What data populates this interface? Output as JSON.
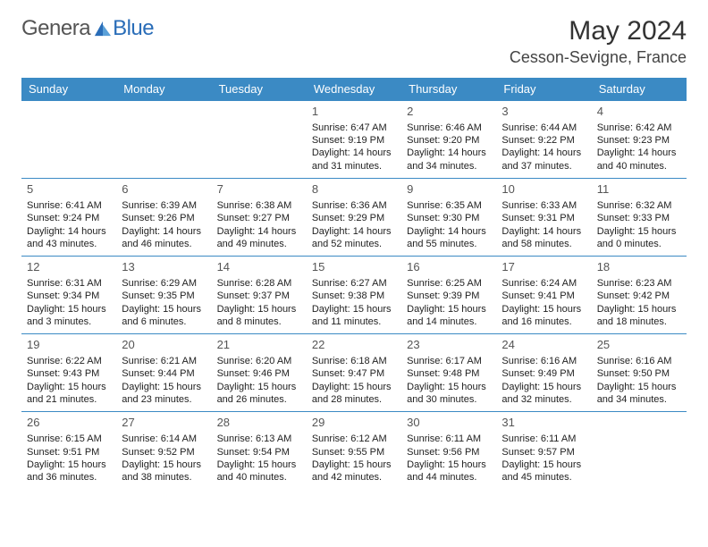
{
  "logo": {
    "part1": "Genera",
    "part2": "Blue"
  },
  "title": "May 2024",
  "location": "Cesson-Sevigne, France",
  "colors": {
    "headerBg": "#3b8ac4",
    "headerText": "#ffffff",
    "cellBorder": "#3b8ac4",
    "bodyText": "#222222",
    "logoBlue": "#2a6db8",
    "logoGray": "#555555"
  },
  "dayHeaders": [
    "Sunday",
    "Monday",
    "Tuesday",
    "Wednesday",
    "Thursday",
    "Friday",
    "Saturday"
  ],
  "weeks": [
    [
      null,
      null,
      null,
      {
        "n": "1",
        "sr": "6:47 AM",
        "ss": "9:19 PM",
        "dl": "14 hours and 31 minutes."
      },
      {
        "n": "2",
        "sr": "6:46 AM",
        "ss": "9:20 PM",
        "dl": "14 hours and 34 minutes."
      },
      {
        "n": "3",
        "sr": "6:44 AM",
        "ss": "9:22 PM",
        "dl": "14 hours and 37 minutes."
      },
      {
        "n": "4",
        "sr": "6:42 AM",
        "ss": "9:23 PM",
        "dl": "14 hours and 40 minutes."
      }
    ],
    [
      {
        "n": "5",
        "sr": "6:41 AM",
        "ss": "9:24 PM",
        "dl": "14 hours and 43 minutes."
      },
      {
        "n": "6",
        "sr": "6:39 AM",
        "ss": "9:26 PM",
        "dl": "14 hours and 46 minutes."
      },
      {
        "n": "7",
        "sr": "6:38 AM",
        "ss": "9:27 PM",
        "dl": "14 hours and 49 minutes."
      },
      {
        "n": "8",
        "sr": "6:36 AM",
        "ss": "9:29 PM",
        "dl": "14 hours and 52 minutes."
      },
      {
        "n": "9",
        "sr": "6:35 AM",
        "ss": "9:30 PM",
        "dl": "14 hours and 55 minutes."
      },
      {
        "n": "10",
        "sr": "6:33 AM",
        "ss": "9:31 PM",
        "dl": "14 hours and 58 minutes."
      },
      {
        "n": "11",
        "sr": "6:32 AM",
        "ss": "9:33 PM",
        "dl": "15 hours and 0 minutes."
      }
    ],
    [
      {
        "n": "12",
        "sr": "6:31 AM",
        "ss": "9:34 PM",
        "dl": "15 hours and 3 minutes."
      },
      {
        "n": "13",
        "sr": "6:29 AM",
        "ss": "9:35 PM",
        "dl": "15 hours and 6 minutes."
      },
      {
        "n": "14",
        "sr": "6:28 AM",
        "ss": "9:37 PM",
        "dl": "15 hours and 8 minutes."
      },
      {
        "n": "15",
        "sr": "6:27 AM",
        "ss": "9:38 PM",
        "dl": "15 hours and 11 minutes."
      },
      {
        "n": "16",
        "sr": "6:25 AM",
        "ss": "9:39 PM",
        "dl": "15 hours and 14 minutes."
      },
      {
        "n": "17",
        "sr": "6:24 AM",
        "ss": "9:41 PM",
        "dl": "15 hours and 16 minutes."
      },
      {
        "n": "18",
        "sr": "6:23 AM",
        "ss": "9:42 PM",
        "dl": "15 hours and 18 minutes."
      }
    ],
    [
      {
        "n": "19",
        "sr": "6:22 AM",
        "ss": "9:43 PM",
        "dl": "15 hours and 21 minutes."
      },
      {
        "n": "20",
        "sr": "6:21 AM",
        "ss": "9:44 PM",
        "dl": "15 hours and 23 minutes."
      },
      {
        "n": "21",
        "sr": "6:20 AM",
        "ss": "9:46 PM",
        "dl": "15 hours and 26 minutes."
      },
      {
        "n": "22",
        "sr": "6:18 AM",
        "ss": "9:47 PM",
        "dl": "15 hours and 28 minutes."
      },
      {
        "n": "23",
        "sr": "6:17 AM",
        "ss": "9:48 PM",
        "dl": "15 hours and 30 minutes."
      },
      {
        "n": "24",
        "sr": "6:16 AM",
        "ss": "9:49 PM",
        "dl": "15 hours and 32 minutes."
      },
      {
        "n": "25",
        "sr": "6:16 AM",
        "ss": "9:50 PM",
        "dl": "15 hours and 34 minutes."
      }
    ],
    [
      {
        "n": "26",
        "sr": "6:15 AM",
        "ss": "9:51 PM",
        "dl": "15 hours and 36 minutes."
      },
      {
        "n": "27",
        "sr": "6:14 AM",
        "ss": "9:52 PM",
        "dl": "15 hours and 38 minutes."
      },
      {
        "n": "28",
        "sr": "6:13 AM",
        "ss": "9:54 PM",
        "dl": "15 hours and 40 minutes."
      },
      {
        "n": "29",
        "sr": "6:12 AM",
        "ss": "9:55 PM",
        "dl": "15 hours and 42 minutes."
      },
      {
        "n": "30",
        "sr": "6:11 AM",
        "ss": "9:56 PM",
        "dl": "15 hours and 44 minutes."
      },
      {
        "n": "31",
        "sr": "6:11 AM",
        "ss": "9:57 PM",
        "dl": "15 hours and 45 minutes."
      },
      null
    ]
  ],
  "labels": {
    "sunrise": "Sunrise: ",
    "sunset": "Sunset: ",
    "daylight": "Daylight: "
  }
}
